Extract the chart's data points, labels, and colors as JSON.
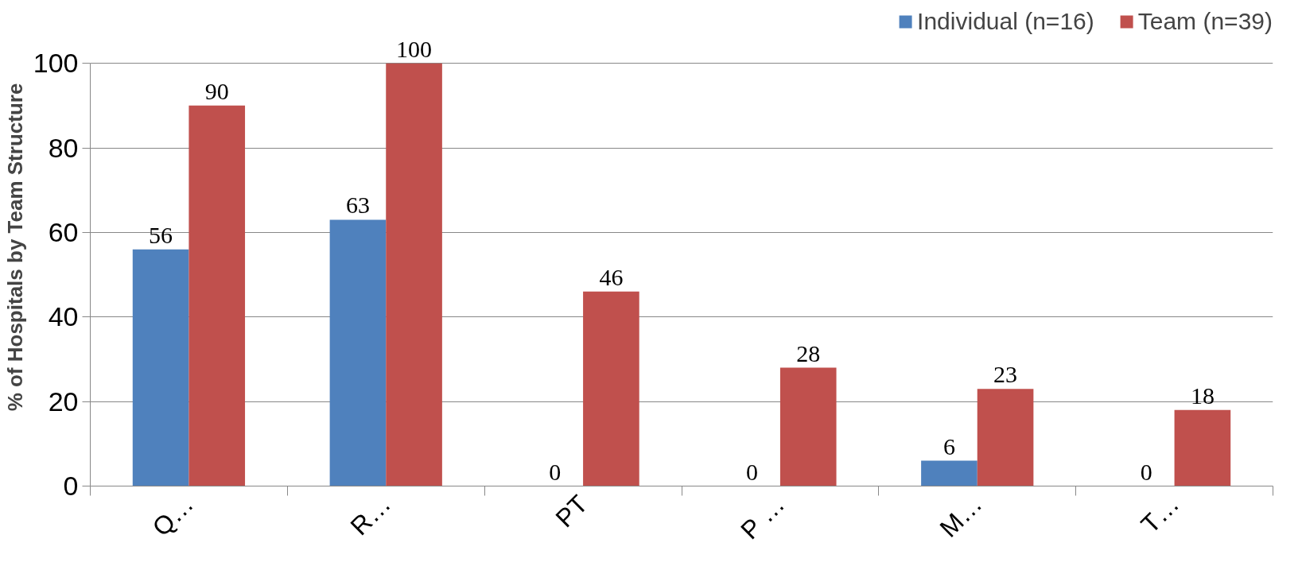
{
  "chart_data": {
    "type": "bar",
    "ylabel": "% of Hospitals by Team Structure",
    "categories": [
      "Q…",
      "R…",
      "PT",
      "P …",
      "M…",
      "T…"
    ],
    "series": [
      {
        "name": "Individual (n=16)",
        "color": "#4f81bd",
        "values": [
          56,
          63,
          0,
          0,
          6,
          0
        ]
      },
      {
        "name": "Team (n=39)",
        "color": "#c0504d",
        "values": [
          90,
          100,
          46,
          28,
          23,
          18
        ]
      }
    ],
    "ylim": [
      0,
      100
    ],
    "yticks": [
      0,
      20,
      40,
      60,
      80,
      100
    ],
    "grid": "y",
    "legend": "top right",
    "data_labels": true
  }
}
